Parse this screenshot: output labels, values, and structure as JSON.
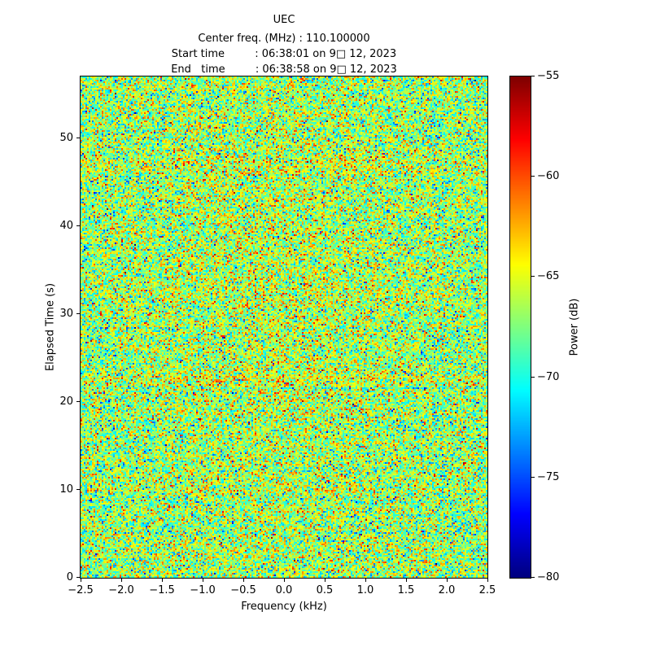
{
  "figure": {
    "title": "UEC",
    "subtitle_lines": [
      "Center freq. (MHz) : 110.100000",
      "Start time         : 06:38:01 on 9□ 12, 2023",
      "End   time         : 06:38:58 on 9□ 12, 2023"
    ]
  },
  "axes": {
    "xlabel": "Frequency (kHz)",
    "ylabel": "Elapsed Time (s)",
    "x_ticks": [
      {
        "v": -2.5,
        "label": "−2.5"
      },
      {
        "v": -2.0,
        "label": "−2.0"
      },
      {
        "v": -1.5,
        "label": "−1.5"
      },
      {
        "v": -1.0,
        "label": "−1.0"
      },
      {
        "v": -0.5,
        "label": "−0.5"
      },
      {
        "v": 0.0,
        "label": "0.0"
      },
      {
        "v": 0.5,
        "label": "0.5"
      },
      {
        "v": 1.0,
        "label": "1.0"
      },
      {
        "v": 1.5,
        "label": "1.5"
      },
      {
        "v": 2.0,
        "label": "2.0"
      },
      {
        "v": 2.5,
        "label": "2.5"
      }
    ],
    "y_ticks": [
      {
        "v": 0,
        "label": "0"
      },
      {
        "v": 10,
        "label": "10"
      },
      {
        "v": 20,
        "label": "20"
      },
      {
        "v": 30,
        "label": "30"
      },
      {
        "v": 40,
        "label": "40"
      },
      {
        "v": 50,
        "label": "50"
      }
    ]
  },
  "colorbar": {
    "label": "Power (dB)",
    "ticks": [
      {
        "v": -55,
        "label": "−55"
      },
      {
        "v": -60,
        "label": "−60"
      },
      {
        "v": -65,
        "label": "−65"
      },
      {
        "v": -70,
        "label": "−70"
      },
      {
        "v": -75,
        "label": "−75"
      },
      {
        "v": -80,
        "label": "−80"
      }
    ]
  },
  "chart_data": {
    "type": "heatmap",
    "title": "UEC",
    "center_freq_mhz": 110.1,
    "start_time_label": "06:38:01 on 9□ 12, 2023",
    "end_time_label": "06:38:58 on 9□ 12, 2023",
    "xlabel": "Frequency (kHz)",
    "ylabel": "Elapsed Time (s)",
    "xlim": [
      -2.5,
      2.5
    ],
    "ylim": [
      0,
      57
    ],
    "colormap": "jet",
    "vmin": -80,
    "vmax": -55,
    "content": "broadband random noise waterfall, no visible narrowband carrier; mostly cyan/green/yellow speckle with sparse red and dark-blue outliers and faint warm horizontal streaks",
    "noise_mean_db": -67,
    "noise_std_db": 3.3,
    "warm_bands_s": [
      22.5,
      47
    ],
    "warm_band_amp_db": 1.1,
    "seed": 1337,
    "grid_cols": 250,
    "grid_rows": 308
  }
}
